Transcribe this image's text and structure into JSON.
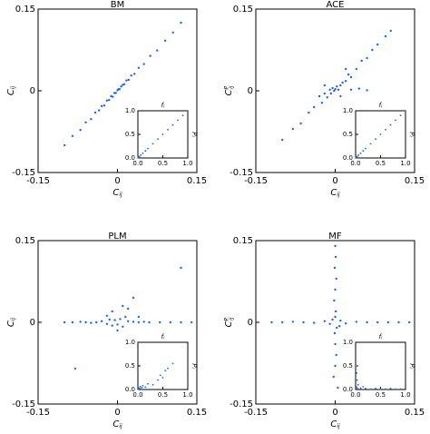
{
  "chart_data": [
    {
      "type": "scatter",
      "title": "BM",
      "xlabel": {
        "main": "C",
        "sub": "ij"
      },
      "ylabel": {
        "main": "C",
        "sub": "ij"
      },
      "xlim": [
        -0.15,
        0.15
      ],
      "ylim": [
        -0.15,
        0.15
      ],
      "xticks": [
        {
          "value": -0.15,
          "label": "-0.15"
        },
        0,
        0.15
      ],
      "yticks": [
        {
          "value": -0.15,
          "label": "-0.15"
        },
        0,
        0.15
      ],
      "series": [
        {
          "color": "#2266dd",
          "x": [
            -0.1,
            -0.085,
            -0.07,
            -0.06,
            -0.05,
            -0.042,
            -0.035,
            -0.03,
            -0.025,
            -0.02,
            -0.016,
            -0.012,
            -0.009,
            -0.006,
            -0.003,
            0,
            0.002,
            0.004,
            0.007,
            0.01,
            0.013,
            0.017,
            0.021,
            0.026,
            0.032,
            0.04,
            0.05,
            0.062,
            0.075,
            0.09,
            0.105,
            0.12
          ],
          "y": [
            -0.1,
            -0.083,
            -0.072,
            -0.058,
            -0.052,
            -0.04,
            -0.036,
            -0.028,
            -0.027,
            -0.018,
            -0.017,
            -0.01,
            -0.011,
            -0.004,
            -0.004,
            0.001,
            0.003,
            0.003,
            0.008,
            0.011,
            0.012,
            0.019,
            0.02,
            0.028,
            0.031,
            0.042,
            0.049,
            0.064,
            0.074,
            0.092,
            0.107,
            0.125
          ]
        }
      ],
      "inset": {
        "type": "scatter",
        "xlabel": {
          "main": "f",
          "sub": "i"
        },
        "ylabel": {
          "main": "P",
          "sub": "i"
        },
        "xlim": [
          0,
          1
        ],
        "ylim": [
          0,
          1
        ],
        "xticks": [
          {
            "value": 0,
            "label": "0.0"
          },
          0.5,
          {
            "value": 1,
            "label": "1.0"
          }
        ],
        "yticks": [
          {
            "value": 0,
            "label": "0.0"
          },
          0.5,
          {
            "value": 1,
            "label": "1.0"
          }
        ],
        "series": [
          {
            "color": "#2266dd",
            "x": [
              0.01,
              0.03,
              0.06,
              0.1,
              0.15,
              0.2,
              0.3,
              0.4,
              0.5,
              0.6,
              0.7,
              0.8,
              0.9,
              1.0
            ],
            "y": [
              0.01,
              0.03,
              0.06,
              0.1,
              0.15,
              0.2,
              0.3,
              0.4,
              0.5,
              0.6,
              0.7,
              0.8,
              0.9,
              1.0
            ]
          }
        ]
      }
    },
    {
      "type": "scatter",
      "title": "ACE",
      "xlabel": {
        "main": "C",
        "sub": "ij"
      },
      "ylabel": {
        "main": "C",
        "sup": "P",
        "sub": "ij"
      },
      "xlim": [
        -0.15,
        0.15
      ],
      "ylim": [
        -0.15,
        0.15
      ],
      "xticks": [
        {
          "value": -0.15,
          "label": "-0.15"
        },
        0,
        0.15
      ],
      "yticks": [
        {
          "value": -0.15,
          "label": "-0.15"
        },
        0,
        0.15
      ],
      "series": [
        {
          "color": "#2266dd",
          "x": [
            -0.1,
            -0.08,
            -0.065,
            -0.05,
            -0.04,
            -0.03,
            -0.025,
            -0.02,
            -0.015,
            -0.01,
            -0.008,
            -0.005,
            -0.002,
            0,
            0.003,
            0.006,
            0.01,
            0.014,
            0.02,
            0.025,
            0.03,
            0.04,
            0.05,
            0.06,
            0.07,
            0.08,
            0.095,
            0.105,
            0.03,
            0.045,
            0.06,
            -0.02,
            0.01,
            0.02
          ],
          "y": [
            -0.09,
            -0.07,
            -0.06,
            -0.04,
            -0.03,
            -0.01,
            -0.022,
            -0.005,
            -0.012,
            0.002,
            -0.005,
            0.005,
            0.0,
            0.003,
            0.008,
            0.002,
            0.01,
            0.015,
            0.018,
            0.03,
            0.025,
            0.04,
            0.055,
            0.06,
            0.075,
            0.085,
            0.1,
            0.11,
            0.002,
            0.004,
            0.001,
            0.01,
            -0.01,
            0.04
          ]
        }
      ],
      "inset": {
        "type": "scatter",
        "xlabel": {
          "main": "f",
          "sub": "i"
        },
        "ylabel": {
          "main": "P",
          "sub": "i"
        },
        "xlim": [
          0,
          1
        ],
        "ylim": [
          0,
          1
        ],
        "xticks": [
          {
            "value": 0,
            "label": "0.0"
          },
          0.5,
          {
            "value": 1,
            "label": "1.0"
          }
        ],
        "yticks": [
          {
            "value": 0,
            "label": "0.0"
          },
          0.5,
          {
            "value": 1,
            "label": "1.0"
          }
        ],
        "series": [
          {
            "color": "#2266dd",
            "x": [
              0.01,
              0.03,
              0.06,
              0.1,
              0.15,
              0.2,
              0.3,
              0.4,
              0.5,
              0.6,
              0.7,
              0.8,
              0.9,
              1.0
            ],
            "y": [
              0.01,
              0.03,
              0.06,
              0.1,
              0.15,
              0.2,
              0.3,
              0.4,
              0.5,
              0.6,
              0.7,
              0.8,
              0.9,
              1.0
            ]
          }
        ]
      }
    },
    {
      "type": "scatter",
      "title": "PLM",
      "xlabel": {
        "main": "C",
        "sub": "ij"
      },
      "ylabel": {
        "main": "C",
        "sub": "ij"
      },
      "xlim": [
        -0.15,
        0.15
      ],
      "ylim": [
        -0.15,
        0.15
      ],
      "xticks": [
        {
          "value": -0.15,
          "label": "-0.15"
        },
        0,
        0.15
      ],
      "yticks": [
        {
          "value": -0.15,
          "label": "-0.15"
        },
        0,
        0.15
      ],
      "series": [
        {
          "color": "#2266dd",
          "x": [
            -0.1,
            -0.085,
            -0.07,
            -0.06,
            -0.05,
            -0.04,
            -0.03,
            -0.02,
            -0.015,
            -0.01,
            -0.005,
            0,
            0.005,
            0.01,
            0.015,
            0.02,
            0.03,
            0.04,
            0.05,
            0.06,
            0.08,
            0.1,
            0.12,
            0.14,
            -0.02,
            -0.01,
            0.0,
            0.01,
            0.02,
            0.03,
            0.04,
            0.12,
            -0.08
          ],
          "y": [
            0.0,
            0.0,
            0.001,
            0.0,
            -0.001,
            0.0,
            0.002,
            -0.003,
            0.005,
            -0.006,
            0.004,
            -0.004,
            0.006,
            -0.008,
            0.01,
            0.002,
            0.001,
            0.0,
            0.001,
            0.0,
            0.0,
            0.0,
            0.0,
            0.0,
            0.012,
            0.02,
            -0.015,
            0.03,
            0.025,
            0.045,
            0.01,
            0.1,
            -0.085
          ]
        }
      ],
      "inset": {
        "type": "scatter",
        "xlabel": {
          "main": "f",
          "sub": "i"
        },
        "ylabel": {
          "main": "P",
          "sub": "i"
        },
        "xlim": [
          0,
          1
        ],
        "ylim": [
          0,
          1
        ],
        "xticks": [
          {
            "value": 0,
            "label": "0.0"
          },
          0.5,
          {
            "value": 1,
            "label": "1.0"
          }
        ],
        "yticks": [
          {
            "value": 0,
            "label": "0.0"
          },
          0.5,
          {
            "value": 1,
            "label": "1.0"
          }
        ],
        "series": [
          {
            "color": "#2266dd",
            "x": [
              0.01,
              0.02,
              0.04,
              0.05,
              0.08,
              0.1,
              0.15,
              0.2,
              0.3,
              0.4,
              0.45,
              0.5,
              0.55,
              0.6,
              0.7
            ],
            "y": [
              0.01,
              0.03,
              0.02,
              0.06,
              0.04,
              0.08,
              0.05,
              0.12,
              0.1,
              0.2,
              0.3,
              0.25,
              0.4,
              0.45,
              0.55
            ]
          }
        ]
      }
    },
    {
      "type": "scatter",
      "title": "MF",
      "xlabel": {
        "main": "C",
        "sub": "ij"
      },
      "ylabel": {
        "main": "C",
        "sup": "P",
        "sub": "ij"
      },
      "xlim": [
        -0.15,
        0.15
      ],
      "ylim": [
        -0.15,
        0.15
      ],
      "xticks": [
        {
          "value": -0.15,
          "label": "-0.15"
        },
        0,
        0.15
      ],
      "yticks": [
        {
          "value": -0.15,
          "label": "-0.15"
        },
        0,
        0.15
      ],
      "series": [
        {
          "color": "#2266dd",
          "x": [
            -0.12,
            -0.1,
            -0.08,
            -0.06,
            -0.04,
            -0.02,
            -0.01,
            0.01,
            0.02,
            0.04,
            0.06,
            0.08,
            0.1,
            0.12,
            0.14,
            0,
            0.001,
            -0.001,
            0.002,
            0,
            -0.002,
            0.001,
            0,
            0.003,
            -0.001,
            0,
            0.002,
            0,
            -0.003,
            0.005,
            -0.005,
            0.008
          ],
          "y": [
            0.0,
            0.0,
            0.001,
            0.0,
            -0.001,
            0.002,
            -0.003,
            0.003,
            -0.002,
            0.001,
            0.0,
            0.0,
            0.0,
            0.0,
            0.0,
            0.14,
            0.12,
            0.1,
            0.08,
            0.06,
            0.04,
            0.02,
            0.01,
            -0.01,
            -0.02,
            -0.04,
            -0.06,
            -0.08,
            -0.1,
            -0.12,
            0.005,
            -0.007
          ]
        }
      ],
      "inset": {
        "type": "scatter",
        "xlabel": {
          "main": "f",
          "sub": "i"
        },
        "ylabel": {
          "main": "P",
          "sub": "i"
        },
        "xlim": [
          0,
          1
        ],
        "ylim": [
          0,
          1
        ],
        "xticks": [
          {
            "value": 0,
            "label": "0.0"
          },
          0.5,
          {
            "value": 1,
            "label": "1.0"
          }
        ],
        "yticks": [
          {
            "value": 0,
            "label": "0.0"
          },
          0.5,
          {
            "value": 1,
            "label": "1.0"
          }
        ],
        "series": [
          {
            "color": "#2266dd",
            "x": [
              0.01,
              0.02,
              0.03,
              0.05,
              0.02,
              0.04,
              0.1,
              0.2,
              0.3,
              0.4,
              0.5,
              0.6,
              0.7,
              0.8,
              0.9,
              0.15
            ],
            "y": [
              0.5,
              0.35,
              0.2,
              0.1,
              0.05,
              0.02,
              0.03,
              0.02,
              0.01,
              0.02,
              0.01,
              0.01,
              0.02,
              0.01,
              0.01,
              0.06
            ]
          }
        ]
      }
    }
  ]
}
